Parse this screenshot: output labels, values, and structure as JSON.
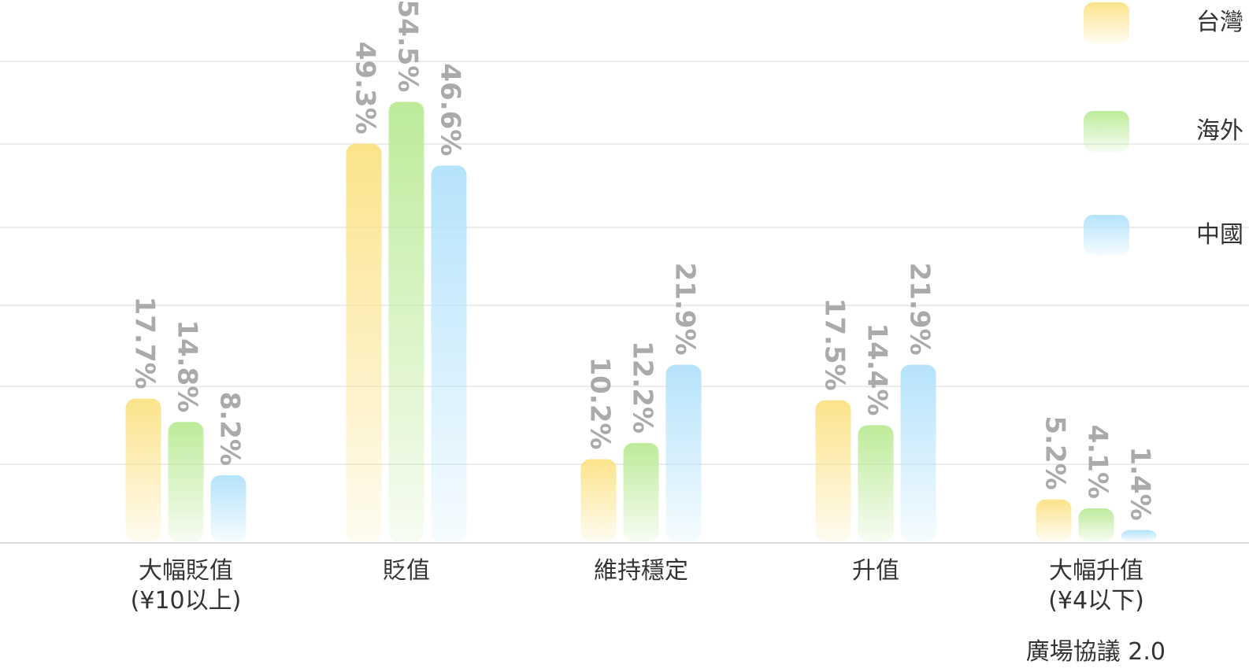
{
  "chart_data": {
    "type": "bar",
    "categories": [
      {
        "line1": "大幅貶值",
        "line2": "(¥10以上)"
      },
      {
        "line1": "貶值",
        "line2": ""
      },
      {
        "line1": "維持穩定",
        "line2": ""
      },
      {
        "line1": "升值",
        "line2": ""
      },
      {
        "line1": "大幅升值",
        "line2": "(¥4以下)"
      }
    ],
    "series": [
      {
        "name": "台灣",
        "color": "#fbe38a",
        "values": [
          17.7,
          49.3,
          10.2,
          17.5,
          5.2
        ]
      },
      {
        "name": "海外",
        "color": "#bdeb9a",
        "values": [
          14.8,
          54.5,
          12.2,
          14.4,
          4.1
        ]
      },
      {
        "name": "中國",
        "color": "#b5e3fb",
        "values": [
          8.2,
          46.6,
          21.9,
          21.9,
          1.4
        ]
      }
    ],
    "value_labels": [
      [
        "17.7%",
        "49.3%",
        "10.2%",
        "17.5%",
        "5.2%"
      ],
      [
        "14.8%",
        "54.5%",
        "12.2%",
        "14.4%",
        "4.1%"
      ],
      [
        "8.2%",
        "46.6%",
        "21.9%",
        "21.9%",
        "1.4%"
      ]
    ],
    "ylim": [
      0,
      60
    ],
    "grid": true,
    "legend_position": "top-right"
  },
  "footer": {
    "text": "廣場協議 2.0"
  }
}
